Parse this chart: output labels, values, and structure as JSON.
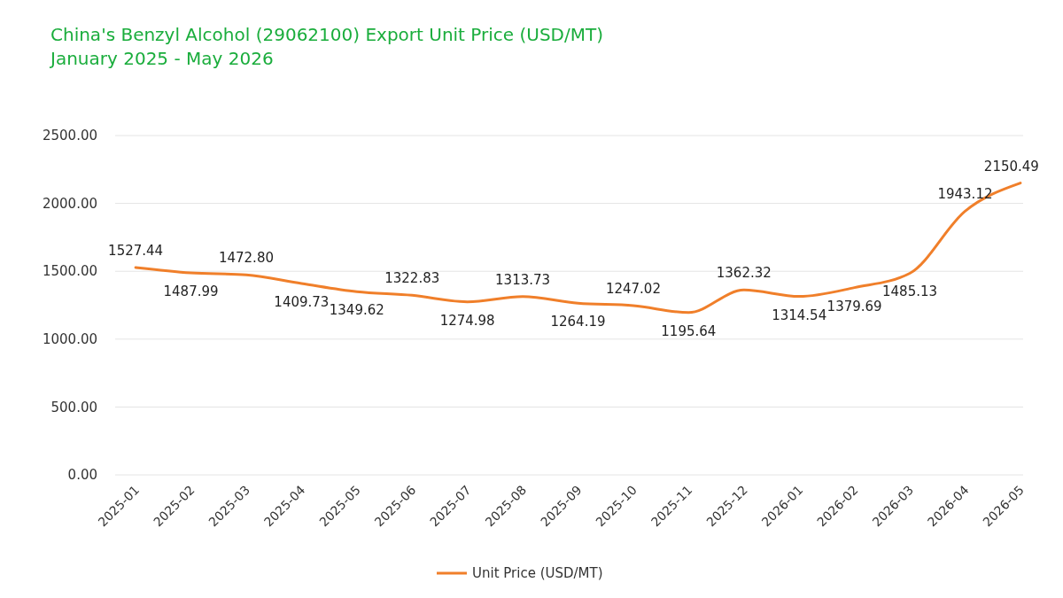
{
  "chart_data": {
    "type": "line",
    "title": "China's Benzyl Alcohol (29062100) Export Unit Price (USD/MT)",
    "subtitle": "January 2025 - May 2026",
    "categories": [
      "2025-01",
      "2025-02",
      "2025-03",
      "2025-04",
      "2025-05",
      "2025-06",
      "2025-07",
      "2025-08",
      "2025-09",
      "2025-10",
      "2025-11",
      "2025-12",
      "2026-01",
      "2026-02",
      "2026-03",
      "2026-04",
      "2026-05"
    ],
    "series": [
      {
        "name": "Unit Price (USD/MT)",
        "color": "#f07f2a",
        "values": [
          1527.44,
          1487.99,
          1472.8,
          1409.73,
          1349.62,
          1322.83,
          1274.98,
          1313.73,
          1264.19,
          1247.02,
          1195.64,
          1362.32,
          1314.54,
          1379.69,
          1485.13,
          1943.12,
          2150.49
        ],
        "value_labels": [
          "1527.44",
          "1487.99",
          "1472.80",
          "1409.73",
          "1349.62",
          "1322.83",
          "1274.98",
          "1313.73",
          "1264.19",
          "1247.02",
          "1195.64",
          "1362.32",
          "1314.54",
          "1379.69",
          "1485.13",
          "1943.12",
          "2150.49"
        ]
      }
    ],
    "ylim": [
      0,
      2500
    ],
    "yticks": [
      {
        "value": 0,
        "label": "0.00"
      },
      {
        "value": 500,
        "label": "500.00"
      },
      {
        "value": 1000,
        "label": "1000.00"
      },
      {
        "value": 1500,
        "label": "1500.00"
      },
      {
        "value": 2000,
        "label": "2000.00"
      },
      {
        "value": 2500,
        "label": "2500.00"
      }
    ],
    "grid": "y",
    "legend": "bottom",
    "marker": "none",
    "line_style": "solid"
  }
}
